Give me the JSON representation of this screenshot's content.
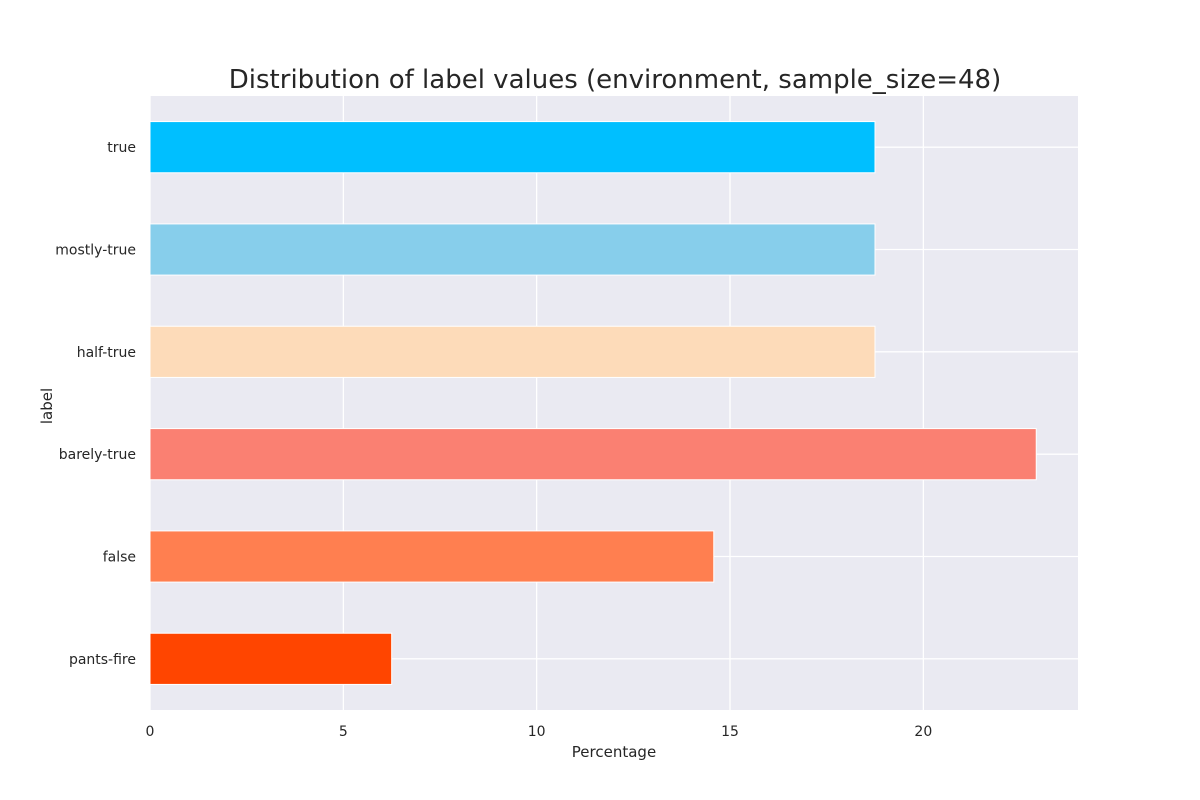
{
  "chart_data": {
    "type": "bar",
    "orientation": "horizontal",
    "title": "Distribution of label values (environment, sample_size=48)",
    "xlabel": "Percentage",
    "ylabel": "label",
    "xlim": [
      0,
      24
    ],
    "xticks": [
      0,
      5,
      10,
      15,
      20
    ],
    "grid": true,
    "categories": [
      "true",
      "mostly-true",
      "half-true",
      "barely-true",
      "false",
      "pants-fire"
    ],
    "values": [
      18.75,
      18.75,
      18.75,
      22.92,
      14.58,
      6.25
    ],
    "colors": [
      "#00bfff",
      "#87ceeb",
      "#fddbb9",
      "#fa8072",
      "#ff7f50",
      "#ff4500"
    ],
    "background_color": "#eaeaf2"
  }
}
